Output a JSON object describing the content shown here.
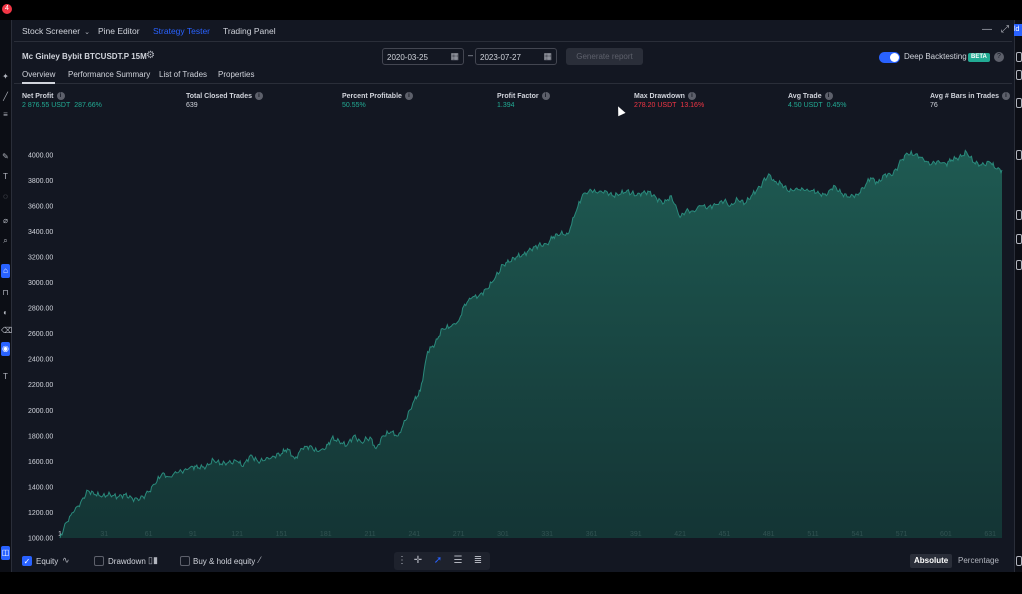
{
  "nav": {
    "tabs": [
      "Stock Screener",
      "Pine Editor",
      "Strategy Tester",
      "Trading Panel"
    ],
    "active_tab": "Strategy Tester"
  },
  "strategy": {
    "name": "Mc Ginley Bybit BTCUSDT.P 15M",
    "date_from": "2020-03-25",
    "date_to": "2023-07-27",
    "date_separator": "–",
    "generate_label": "Generate report",
    "deep_backtesting_label": "Deep Backtesting",
    "deep_backtesting_on": true,
    "beta_label": "BETA"
  },
  "sub_tabs": [
    "Overview",
    "Performance Summary",
    "List of Trades",
    "Properties"
  ],
  "metrics": [
    {
      "label": "Net Profit",
      "value": "2 876.55 USDT",
      "pct": "287.66%",
      "color": "#22ab94"
    },
    {
      "label": "Total Closed Trades",
      "value": "639",
      "pct": "",
      "color": "#d1d4dc"
    },
    {
      "label": "Percent Profitable",
      "value": "50.55%",
      "pct": "",
      "color": "#22ab94"
    },
    {
      "label": "Profit Factor",
      "value": "1.394",
      "pct": "",
      "color": "#22ab94"
    },
    {
      "label": "Max Drawdown",
      "value": "278.20 USDT",
      "pct": "13.16%",
      "color": "#f23645"
    },
    {
      "label": "Avg Trade",
      "value": "4.50 USDT",
      "pct": "0.45%",
      "color": "#22ab94"
    },
    {
      "label": "Avg # Bars in Trades",
      "value": "76",
      "pct": "",
      "color": "#d1d4dc"
    }
  ],
  "chart_data": {
    "type": "area",
    "ylim": [
      1000,
      4100
    ],
    "y_ticks": [
      "1000.00",
      "1200.00",
      "1400.00",
      "1600.00",
      "1800.00",
      "2000.00",
      "2200.00",
      "2400.00",
      "2600.00",
      "2800.00",
      "3000.00",
      "3200.00",
      "3400.00",
      "3600.00",
      "3800.00",
      "4000.00"
    ],
    "x_ticks": [
      "1",
      "31",
      "61",
      "91",
      "121",
      "151",
      "181",
      "211",
      "241",
      "271",
      "301",
      "331",
      "361",
      "391",
      "421",
      "451",
      "481",
      "511",
      "541",
      "571",
      "601",
      "631"
    ],
    "xlim": [
      1,
      639
    ],
    "series": [
      {
        "x": [
          1,
          5,
          10,
          15,
          20,
          25,
          30,
          35,
          40,
          45,
          50,
          55,
          61,
          65,
          70,
          75,
          80,
          85,
          91,
          95,
          100,
          105,
          110,
          115,
          121,
          125,
          130,
          135,
          140,
          145,
          151,
          155,
          160,
          165,
          170,
          175,
          181,
          185,
          190,
          195,
          200,
          205,
          211,
          215,
          220,
          225,
          230,
          235,
          241,
          245,
          250,
          255,
          260,
          265,
          271,
          275,
          280,
          285,
          290,
          295,
          301,
          305,
          310,
          315,
          320,
          325,
          331,
          335,
          340,
          345,
          350,
          355,
          361,
          365,
          370,
          375,
          380,
          385,
          391,
          395,
          400,
          405,
          410,
          415,
          421,
          425,
          430,
          435,
          440,
          445,
          451,
          455,
          460,
          465,
          470,
          475,
          481,
          485,
          490,
          495,
          500,
          505,
          511,
          515,
          520,
          525,
          530,
          535,
          541,
          545,
          550,
          555,
          560,
          565,
          571,
          575,
          580,
          585,
          590,
          595,
          601,
          605,
          610,
          615,
          620,
          625,
          631,
          635,
          639
        ],
        "y": [
          1000,
          1120,
          1200,
          1280,
          1370,
          1340,
          1330,
          1340,
          1320,
          1340,
          1310,
          1300,
          1360,
          1420,
          1500,
          1480,
          1510,
          1530,
          1560,
          1550,
          1560,
          1610,
          1580,
          1590,
          1600,
          1560,
          1650,
          1600,
          1610,
          1640,
          1660,
          1700,
          1620,
          1700,
          1720,
          1680,
          1700,
          1780,
          1760,
          1720,
          1800,
          1750,
          1790,
          1700,
          1800,
          1830,
          1800,
          1920,
          2080,
          2150,
          2460,
          2520,
          2640,
          2650,
          2700,
          2830,
          2880,
          2900,
          2950,
          3020,
          3140,
          3160,
          3200,
          3220,
          3260,
          3290,
          3300,
          3360,
          3380,
          3380,
          3540,
          3690,
          3720,
          3700,
          3720,
          3680,
          3690,
          3720,
          3680,
          3700,
          3710,
          3660,
          3620,
          3680,
          3510,
          3560,
          3560,
          3600,
          3590,
          3610,
          3640,
          3600,
          3650,
          3620,
          3690,
          3750,
          3850,
          3790,
          3770,
          3710,
          3740,
          3720,
          3720,
          3700,
          3680,
          3760,
          3700,
          3670,
          3690,
          3740,
          3820,
          3780,
          3850,
          3840,
          3960,
          4010,
          4000,
          3980,
          3920,
          3950,
          3930,
          3960,
          3980,
          4020,
          3940,
          3920,
          3940,
          3890,
          3880
        ],
        "color": "#26a69a"
      }
    ],
    "grid": false
  },
  "bottom": {
    "equity_label": "Equity",
    "equity_checked": true,
    "drawdown_label": "Drawdown",
    "drawdown_checked": false,
    "buyhold_label": "Buy & hold equity",
    "buyhold_checked": false,
    "absolute_label": "Absolute",
    "percentage_label": "Percentage"
  },
  "notifications": "4"
}
